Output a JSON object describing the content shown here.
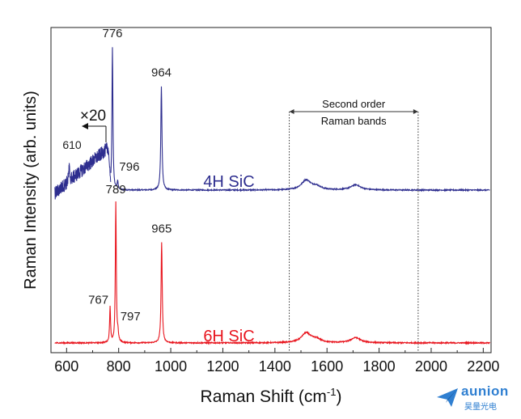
{
  "chart_data": {
    "type": "line",
    "xlabel": "Raman Shift (cm",
    "xlabel_sup": "-1",
    "xlabel_close": ")",
    "ylabel": "Raman Intensity (arb. units)",
    "xlim": [
      540,
      2230
    ],
    "ylim": [
      0,
      100
    ],
    "x_ticks": [
      600,
      800,
      1000,
      1200,
      1400,
      1600,
      1800,
      2000,
      2200
    ],
    "x_tick_labels": [
      "600",
      "800",
      "1000",
      "1200",
      "1400",
      "1600",
      "1800",
      "2000",
      "2200"
    ],
    "grid": false,
    "series": [
      {
        "name": "4H SiC",
        "color": "#2e2e8f",
        "baseline": 50,
        "peaks": [
          {
            "x": 776,
            "height": 44,
            "width": 2.2,
            "label": "776"
          },
          {
            "x": 796,
            "height": 2.5,
            "width": 2.5,
            "label": "796"
          },
          {
            "x": 964,
            "height": 32,
            "width": 2.6,
            "label": "964"
          },
          {
            "x": 1520,
            "height": 3.0,
            "width": 22
          },
          {
            "x": 1560,
            "height": 1.0,
            "width": 20
          },
          {
            "x": 1710,
            "height": 1.6,
            "width": 22
          }
        ],
        "inset": {
          "factor_label": "×20",
          "x_range": [
            555,
            760
          ],
          "peak_label": "610",
          "peak_x": 610
        }
      },
      {
        "name": "6H SiC",
        "color": "#e8141d",
        "baseline": 3,
        "peaks": [
          {
            "x": 767,
            "height": 11,
            "width": 2.2,
            "label": "767"
          },
          {
            "x": 789,
            "height": 43,
            "width": 2.2,
            "label": "789"
          },
          {
            "x": 797,
            "height": 2.5,
            "width": 2.5,
            "label": "797"
          },
          {
            "x": 965,
            "height": 31,
            "width": 2.6,
            "label": "965"
          },
          {
            "x": 1520,
            "height": 3.0,
            "width": 22
          },
          {
            "x": 1560,
            "height": 1.0,
            "width": 20
          },
          {
            "x": 1710,
            "height": 1.6,
            "width": 22
          }
        ]
      }
    ],
    "annotations": {
      "second_order_line1": "Second order",
      "second_order_line2": "Raman bands",
      "second_order_range": [
        1455,
        1950
      ]
    }
  },
  "watermark": {
    "brand": "aunion",
    "sub": "昊量光电"
  }
}
